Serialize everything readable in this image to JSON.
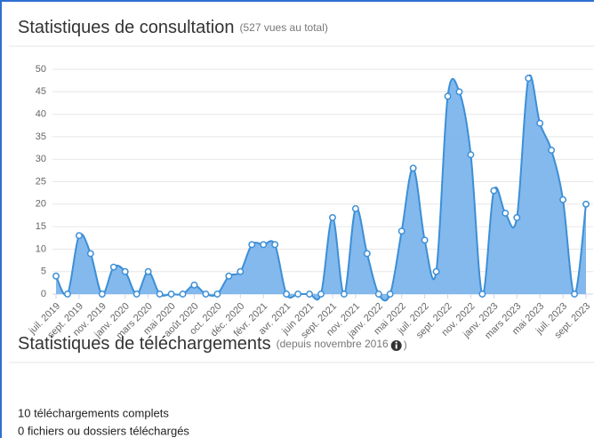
{
  "consultation": {
    "title": "Statistiques de consultation",
    "note": "(527 vues au total)"
  },
  "chart_data": {
    "type": "area",
    "color": "#7cb5ec",
    "line_color": "#3d8fd6",
    "categories": [
      "juil. 2019",
      null,
      "sept. 2019",
      null,
      "nov. 2019",
      null,
      "janv. 2020",
      null,
      "mars 2020",
      null,
      "mai 2020",
      null,
      "août 2020",
      null,
      "oct. 2020",
      null,
      "déc. 2020",
      null,
      "févr. 2021",
      null,
      "avr. 2021",
      null,
      "juin 2021",
      null,
      "sept. 2021",
      null,
      "nov. 2021",
      null,
      "janv. 2022",
      null,
      "mai 2022",
      null,
      "juil. 2022",
      null,
      "sept. 2022",
      null,
      "nov. 2022",
      null,
      "janv. 2023",
      null,
      "mars 2023",
      null,
      "mai 2023",
      null,
      "juil. 2023",
      null,
      "sept. 2023"
    ],
    "values": [
      4,
      0,
      13,
      9,
      0,
      6,
      5,
      0,
      5,
      0,
      0,
      0,
      2,
      0,
      0,
      4,
      5,
      11,
      11,
      11,
      0,
      0,
      0,
      0,
      17,
      0,
      19,
      9,
      0,
      0,
      14,
      28,
      12,
      5,
      44,
      45,
      31,
      0,
      23,
      18,
      17,
      48,
      38,
      32,
      21,
      0,
      20
    ],
    "ylim": [
      0,
      50
    ],
    "yticks": [
      0,
      5,
      10,
      15,
      20,
      25,
      30,
      35,
      40,
      45,
      50
    ],
    "grid": true
  },
  "downloads": {
    "title": "Statistiques de téléchargements",
    "note_start": "(depuis novembre 2016",
    "note_end": ")",
    "lines": [
      "10 téléchargements complets",
      "0 fichiers ou dossiers téléchargés"
    ]
  }
}
